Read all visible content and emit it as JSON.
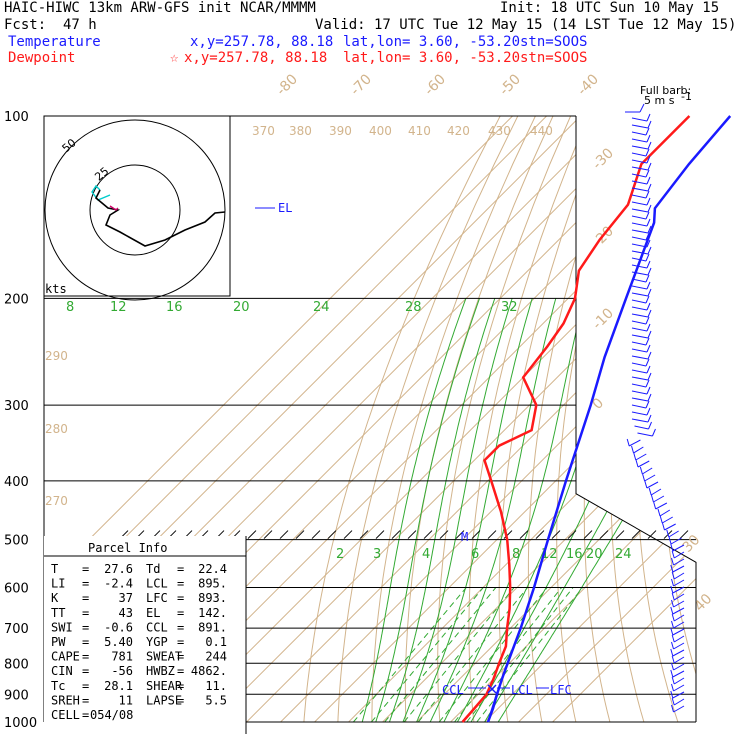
{
  "header": {
    "title": "HAIC-HIWC 13km ARW-GFS init   NCAR/MMMM",
    "init": "Init: 18 UTC Sun 10 May 15",
    "fcst_label": "Fcst:",
    "fcst_value": "47 h",
    "valid": "Valid: 17 UTC Tue 12 May 15 (14 LST Tue 12 May 15)",
    "temperature_label": "Temperature",
    "temperature_xy": "x,y=257.78, 88.18",
    "temperature_latlon": "lat,lon=  3.60, -53.20",
    "temperature_stn": "stn=SOOS",
    "dewpoint_label": "Dewpoint",
    "dewpoint_xy": "x,y=257.78, 88.18",
    "dewpoint_latlon": "lat,lon=  3.60, -53.20",
    "dewpoint_stn": "stn=SOOS",
    "temperature_color": "#1a1aff",
    "dewpoint_color": "#ff1a1a"
  },
  "barb_legend": {
    "line1": "Full barb:",
    "line2": "5 m s",
    "superscript": "-1"
  },
  "hodograph": {
    "ring_labels": [
      "50",
      "25"
    ],
    "units": "kts"
  },
  "parcel_info": {
    "title": "Parcel Info",
    "rows": [
      [
        "T",
        "=",
        "27.6",
        "Td",
        "=",
        "22.4"
      ],
      [
        "LI",
        "=",
        "-2.4",
        "LCL",
        "=",
        "895."
      ],
      [
        "K",
        "=",
        "37",
        "LFC",
        "=",
        "893."
      ],
      [
        "TT",
        "=",
        "43",
        "EL",
        "=",
        "142."
      ],
      [
        "SWI",
        "=",
        "-0.6",
        "CCL",
        "=",
        "891."
      ],
      [
        "PW",
        "=",
        "5.40",
        "YGP",
        "=",
        "0.1"
      ],
      [
        "CAPE",
        "=",
        "781",
        "SWEAT",
        "=",
        "244"
      ],
      [
        "CIN",
        "=",
        "-56",
        "HWBZ",
        "=",
        "4862."
      ],
      [
        "Tc",
        "=",
        "28.1",
        "SHEAR",
        "=",
        "11."
      ],
      [
        "SREH",
        "=",
        "11",
        "LAPSE",
        "=",
        "5.5"
      ],
      [
        "CELL",
        "=",
        "054/08",
        "",
        "",
        ""
      ]
    ]
  },
  "level_labels": {
    "ccl": "CCL",
    "lcl": "LCL",
    "lfc": "LFC",
    "el": "EL",
    "m": "M"
  },
  "chart_data": {
    "type": "skew-t",
    "pressure_ticks": [
      "100",
      "200",
      "300",
      "400",
      "500",
      "600",
      "700",
      "800",
      "900",
      "1000"
    ],
    "isotherm_labels": [
      "-80",
      "-70",
      "-60",
      "-50",
      "-40",
      "-30",
      "-20",
      "-10",
      "0",
      "30",
      "40"
    ],
    "theta_labels_top": [
      "370",
      "380",
      "390",
      "400",
      "410",
      "420",
      "430",
      "440"
    ],
    "theta_labels_left": [
      "290",
      "280",
      "270"
    ],
    "mixing_ratio_upper": [
      "8",
      "12",
      "16",
      "20",
      "24",
      "28",
      "32"
    ],
    "mixing_ratio_lower": [
      "2",
      "3",
      "4",
      "6",
      "8",
      "12",
      "16",
      "20",
      "24"
    ],
    "series": [
      {
        "name": "Temperature",
        "color": "#1a1aff",
        "p": [
          1000,
          950,
          900,
          850,
          800,
          700,
          600,
          500,
          400,
          300,
          250,
          200,
          150,
          142,
          120,
          100
        ],
        "t": [
          31,
          28.5,
          25.5,
          22.5,
          19.5,
          13,
          5,
          -5,
          -17,
          -32,
          -42,
          -53,
          -67,
          -71,
          -74,
          -76
        ]
      },
      {
        "name": "Dewpoint",
        "color": "#ff1a1a",
        "p": [
          1000,
          950,
          900,
          850,
          800,
          750,
          700,
          650,
          600,
          550,
          500,
          450,
          400,
          370,
          350,
          330,
          300,
          270,
          240,
          220,
          200,
          180,
          160,
          140,
          120,
          100
        ],
        "td": [
          23.5,
          23,
          22.4,
          20,
          17,
          14,
          9,
          4,
          -2,
          -9,
          -17,
          -27,
          -39,
          -47,
          -47,
          -42,
          -48,
          -60,
          -62,
          -64,
          -68,
          -75,
          -78,
          -80,
          -88,
          -88
        ]
      }
    ]
  }
}
